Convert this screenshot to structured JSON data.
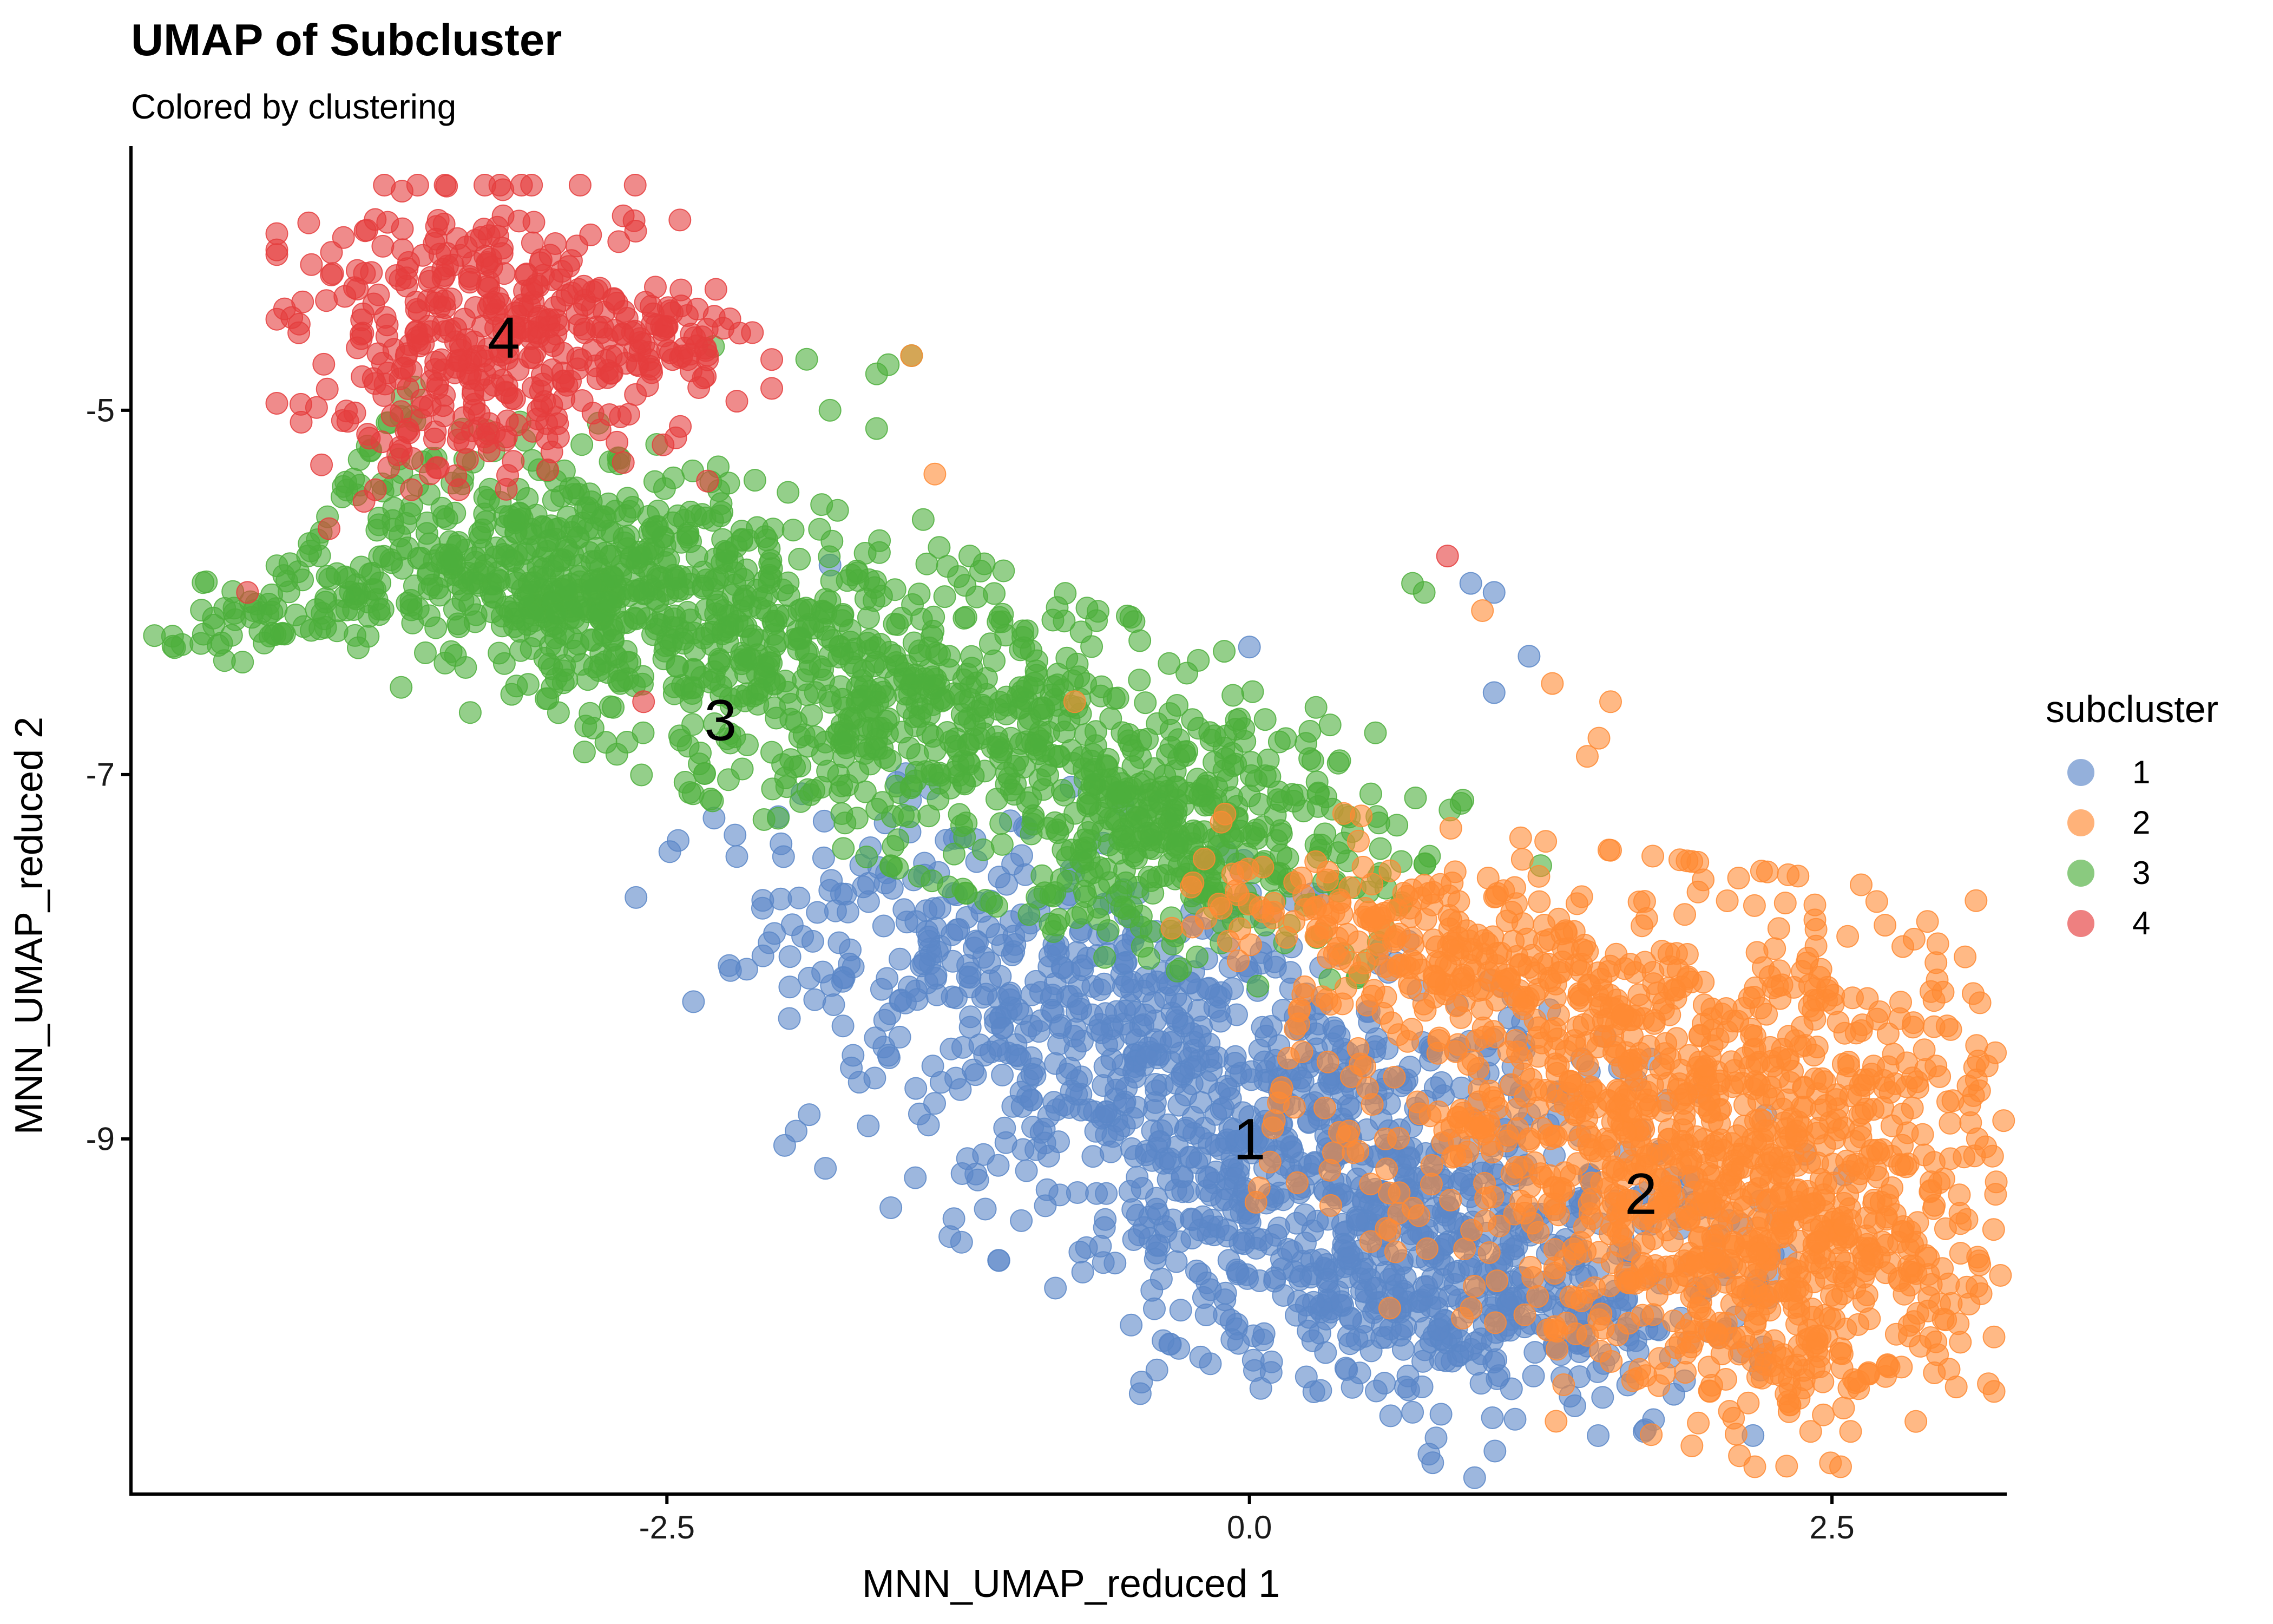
{
  "chart_data": {
    "type": "scatter",
    "title": "UMAP of Subcluster",
    "subtitle": "Colored by clustering",
    "xlabel": "MNN_UMAP_reduced 1",
    "ylabel": "MNN_UMAP_reduced 2",
    "xlim": [
      -4.8,
      3.25
    ],
    "ylim": [
      -10.95,
      -3.55
    ],
    "x_ticks": [
      -2.5,
      0.0,
      2.5
    ],
    "x_tick_labels": [
      "-2.5",
      "0.0",
      "2.5"
    ],
    "y_ticks": [
      -9,
      -7,
      -5
    ],
    "y_tick_labels": [
      "-9",
      "-7",
      "-5"
    ],
    "grid": false,
    "legend": {
      "title": "subcluster",
      "position": "right",
      "entries": [
        "1",
        "2",
        "3",
        "4"
      ]
    },
    "colors": {
      "1": "#5b87c8",
      "2": "#ff8a33",
      "3": "#4daf3c",
      "4": "#e53d3d"
    },
    "point_opacity": 0.6,
    "series": [
      {
        "name": "1",
        "label_at": [
          0.0,
          -9.0
        ],
        "regions": [
          {
            "center": [
              0.3,
              -9.1
            ],
            "spread": [
              0.9,
              0.55
            ],
            "angle": -32,
            "n": 900
          },
          {
            "center": [
              -1.1,
              -8.1
            ],
            "spread": [
              0.7,
              0.35
            ],
            "angle": -30,
            "n": 300
          },
          {
            "center": [
              0.9,
              -9.9
            ],
            "spread": [
              0.6,
              0.28
            ],
            "angle": -5,
            "n": 250
          }
        ],
        "points": [
          [
            0.0,
            -6.3
          ],
          [
            1.05,
            -6.0
          ],
          [
            1.2,
            -6.35
          ],
          [
            1.05,
            -6.55
          ],
          [
            0.95,
            -5.95
          ],
          [
            -1.8,
            -5.85
          ],
          [
            -2.2,
            -7.45
          ]
        ]
      },
      {
        "name": "2",
        "label_at": [
          1.68,
          -9.3
        ],
        "regions": [
          {
            "center": [
              1.8,
              -8.8
            ],
            "spread": [
              0.75,
              0.6
            ],
            "angle": -10,
            "n": 900
          },
          {
            "center": [
              2.3,
              -9.7
            ],
            "spread": [
              0.45,
              0.5
            ],
            "angle": 0,
            "n": 450
          },
          {
            "center": [
              0.7,
              -7.9
            ],
            "spread": [
              0.45,
              0.2
            ],
            "angle": -20,
            "n": 200
          }
        ],
        "points": [
          [
            1.0,
            -6.1
          ],
          [
            1.3,
            -6.5
          ],
          [
            1.55,
            -6.6
          ],
          [
            1.5,
            -6.8
          ],
          [
            1.45,
            -6.9
          ],
          [
            -1.35,
            -5.35
          ],
          [
            -1.45,
            -4.7
          ],
          [
            -0.75,
            -6.6
          ]
        ]
      },
      {
        "name": "3",
        "label_at": [
          -2.27,
          -6.7
        ],
        "regions": [
          {
            "center": [
              -1.6,
              -6.55
            ],
            "spread": [
              1.15,
              0.38
            ],
            "angle": -25,
            "n": 1000
          },
          {
            "center": [
              -2.9,
              -5.9
            ],
            "spread": [
              0.5,
              0.3
            ],
            "angle": -25,
            "n": 300
          },
          {
            "center": [
              -3.9,
              -6.05
            ],
            "spread": [
              0.5,
              0.12
            ],
            "angle": 12,
            "n": 120
          },
          {
            "center": [
              -0.35,
              -7.4
            ],
            "spread": [
              0.35,
              0.3
            ],
            "angle": -20,
            "n": 200
          }
        ],
        "points": [
          [
            -1.45,
            -4.7
          ],
          [
            -1.6,
            -4.8
          ],
          [
            -1.55,
            -4.75
          ],
          [
            -1.9,
            -4.72
          ],
          [
            -2.3,
            -4.65
          ],
          [
            -1.8,
            -5.0
          ],
          [
            -1.6,
            -5.1
          ],
          [
            -1.4,
            -5.6
          ],
          [
            -1.2,
            -5.8
          ],
          [
            0.75,
            -6.0
          ],
          [
            0.7,
            -5.95
          ],
          [
            -4.5,
            -6.28
          ],
          [
            -2.7,
            -6.5
          ],
          [
            1.25,
            -7.5
          ]
        ]
      },
      {
        "name": "4",
        "label_at": [
          -3.2,
          -4.6
        ],
        "regions": [
          {
            "center": [
              -3.25,
              -4.6
            ],
            "spread": [
              0.42,
              0.38
            ],
            "angle": 0,
            "n": 400
          },
          {
            "center": [
              -2.6,
              -4.6
            ],
            "spread": [
              0.25,
              0.12
            ],
            "angle": 0,
            "n": 60
          }
        ],
        "points": [
          [
            -3.8,
            -5.5
          ],
          [
            -3.95,
            -5.65
          ],
          [
            -4.3,
            -6.0
          ],
          [
            -2.6,
            -6.6
          ],
          [
            0.85,
            -5.8
          ],
          [
            -2.2,
            -4.95
          ],
          [
            -2.05,
            -4.88
          ]
        ]
      }
    ]
  }
}
